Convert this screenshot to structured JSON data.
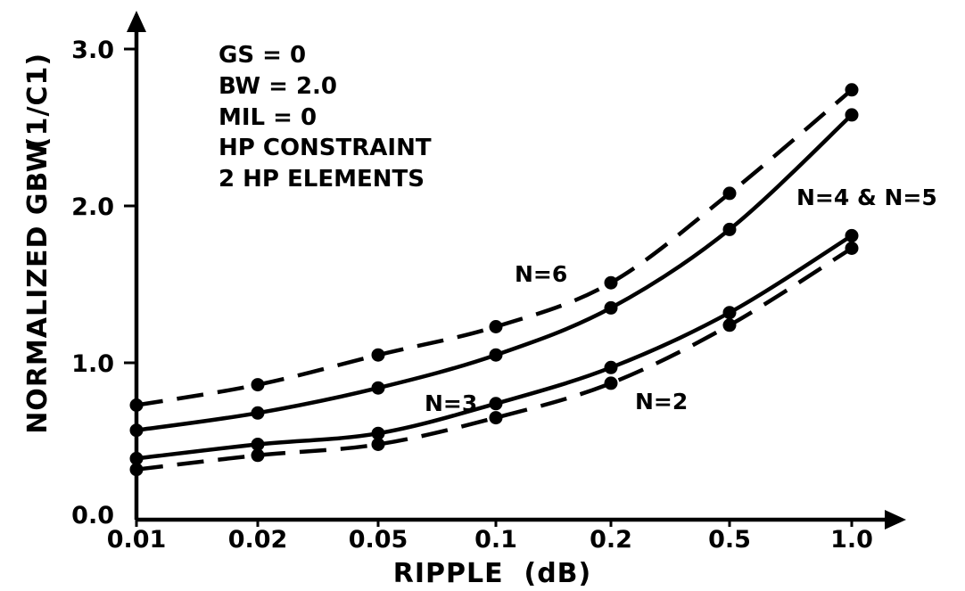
{
  "chart_data": {
    "type": "line",
    "title": "",
    "xlabel": "RIPPLE  (dB)",
    "ylabel": "NORMALIZED GBW",
    "ylabel_unit": "(1/C1)",
    "x_scale": "categorical-log",
    "x": [
      0.01,
      0.02,
      0.05,
      0.1,
      0.2,
      0.5,
      1.0
    ],
    "x_tick_labels": [
      "0.01",
      "0.02",
      "0.05",
      "0.1",
      "0.2",
      "0.5",
      "1.0"
    ],
    "y_tick_labels": [
      "0.0",
      "1.0",
      "2.0",
      "3.0"
    ],
    "y_ticks": [
      0.0,
      1.0,
      2.0,
      3.0
    ],
    "ylim": [
      0,
      3.3
    ],
    "grid": false,
    "annotations": [
      "GS = 0",
      "BW = 2.0",
      "MIL = 0",
      "HP CONSTRAINT",
      "2 HP ELEMENTS"
    ],
    "series": [
      {
        "name": "N=6",
        "style": "dashed",
        "values": [
          0.73,
          0.86,
          1.05,
          1.23,
          1.51,
          2.08,
          2.74
        ]
      },
      {
        "name": "N=4 & N=5",
        "style": "solid",
        "values": [
          0.57,
          0.68,
          0.84,
          1.05,
          1.35,
          1.85,
          2.58
        ]
      },
      {
        "name": "N=3",
        "style": "solid",
        "values": [
          0.39,
          0.48,
          0.55,
          0.74,
          0.97,
          1.32,
          1.81
        ]
      },
      {
        "name": "N=2",
        "style": "dashed",
        "values": [
          0.32,
          0.41,
          0.48,
          0.65,
          0.87,
          1.24,
          1.73
        ]
      }
    ]
  }
}
